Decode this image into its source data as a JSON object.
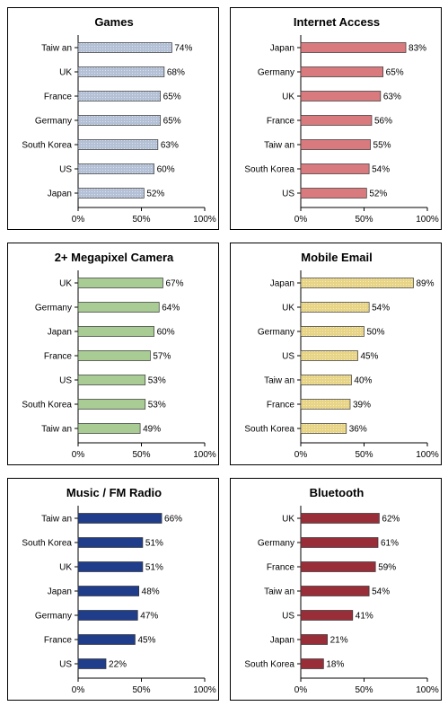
{
  "chart_data": [
    {
      "type": "bar",
      "orientation": "horizontal",
      "title": "Games",
      "categories": [
        "Taiw an",
        "UK",
        "France",
        "Germany",
        "South Korea",
        "US",
        "Japan"
      ],
      "values": [
        74,
        68,
        65,
        65,
        63,
        60,
        52
      ],
      "value_labels": [
        "74%",
        "68%",
        "65%",
        "65%",
        "63%",
        "60%",
        "52%"
      ],
      "xlim": [
        0,
        100
      ],
      "ticks": [
        "0%",
        "50%",
        "100%"
      ],
      "bar_color": "#b4c0d6",
      "bar_pattern": "dotted"
    },
    {
      "type": "bar",
      "orientation": "horizontal",
      "title": "Internet Access",
      "categories": [
        "Japan",
        "Germany",
        "UK",
        "France",
        "Taiw an",
        "South Korea",
        "US"
      ],
      "values": [
        83,
        65,
        63,
        56,
        55,
        54,
        52
      ],
      "value_labels": [
        "83%",
        "65%",
        "63%",
        "56%",
        "55%",
        "54%",
        "52%"
      ],
      "xlim": [
        0,
        100
      ],
      "ticks": [
        "0%",
        "50%",
        "100%"
      ],
      "bar_color": "#d97b7e",
      "bar_pattern": "solid"
    },
    {
      "type": "bar",
      "orientation": "horizontal",
      "title": "2+ Megapixel Camera",
      "categories": [
        "UK",
        "Germany",
        "Japan",
        "France",
        "US",
        "South Korea",
        "Taiw an"
      ],
      "values": [
        67,
        64,
        60,
        57,
        53,
        53,
        49
      ],
      "value_labels": [
        "67%",
        "64%",
        "60%",
        "57%",
        "53%",
        "53%",
        "49%"
      ],
      "xlim": [
        0,
        100
      ],
      "ticks": [
        "0%",
        "50%",
        "100%"
      ],
      "bar_color": "#a8cc94",
      "bar_pattern": "solid"
    },
    {
      "type": "bar",
      "orientation": "horizontal",
      "title": "Mobile Email",
      "categories": [
        "Japan",
        "UK",
        "Germany",
        "US",
        "Taiw an",
        "France",
        "South Korea"
      ],
      "values": [
        89,
        54,
        50,
        45,
        40,
        39,
        36
      ],
      "value_labels": [
        "89%",
        "54%",
        "50%",
        "45%",
        "40%",
        "39%",
        "36%"
      ],
      "xlim": [
        0,
        100
      ],
      "ticks": [
        "0%",
        "50%",
        "100%"
      ],
      "bar_color": "#e8d485",
      "bar_pattern": "dotted"
    },
    {
      "type": "bar",
      "orientation": "horizontal",
      "title": "Music / FM Radio",
      "categories": [
        "Taiw an",
        "South Korea",
        "UK",
        "Japan",
        "Germany",
        "France",
        "US"
      ],
      "values": [
        66,
        51,
        51,
        48,
        47,
        45,
        22
      ],
      "value_labels": [
        "66%",
        "51%",
        "51%",
        "48%",
        "47%",
        "45%",
        "22%"
      ],
      "xlim": [
        0,
        100
      ],
      "ticks": [
        "0%",
        "50%",
        "100%"
      ],
      "bar_color": "#1f3d8a",
      "bar_pattern": "solid"
    },
    {
      "type": "bar",
      "orientation": "horizontal",
      "title": "Bluetooth",
      "categories": [
        "UK",
        "Germany",
        "France",
        "Taiw an",
        "US",
        "Japan",
        "South Korea"
      ],
      "values": [
        62,
        61,
        59,
        54,
        41,
        21,
        18
      ],
      "value_labels": [
        "62%",
        "61%",
        "59%",
        "54%",
        "41%",
        "21%",
        "18%"
      ],
      "xlim": [
        0,
        100
      ],
      "ticks": [
        "0%",
        "50%",
        "100%"
      ],
      "bar_color": "#9a2e38",
      "bar_pattern": "solid"
    }
  ]
}
